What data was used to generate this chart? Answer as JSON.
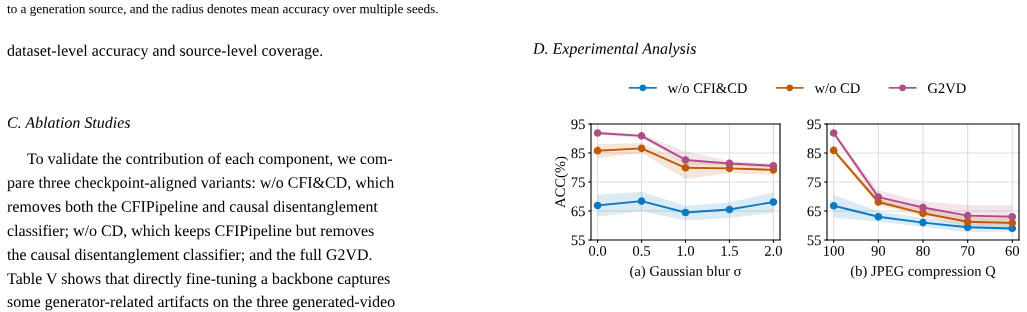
{
  "chart_data": [
    {
      "type": "line",
      "xlabel": "(a) Gaussian blur σ",
      "ylabel": "ACC(%)",
      "annotations": [
        "to a generation source, and the radius denotes mean accuracy over multiple seeds.",
        "dataset-level accuracy and source-level coverage.",
        "C. Ablation Studies",
        "To validate the contribution of each component, we com-",
        "pare three checkpoint-aligned variants: w/o CFI&CD, which",
        "removes both the CFIPipeline and causal disentanglement",
        "classifier; w/o CD, which keeps CFIPipeline but removes",
        "the causal disentanglement classifier; and the full G2VD.",
        "Table V shows that directly fine-tuning a backbone captures",
        "some generator-related artifacts on the three generated-video",
        "D. Experimental Analysis"
      ],
      "x": [
        0.0,
        0.5,
        1.0,
        1.5,
        2.0
      ],
      "xlim": [
        -0.075,
        2.075
      ],
      "xticks": [
        {
          "value": 0.0,
          "label": "0.0"
        },
        {
          "value": 0.5,
          "label": "0.5"
        },
        {
          "value": 1.0,
          "label": "1.0"
        },
        {
          "value": 1.5,
          "label": "1.5"
        },
        {
          "value": 2.0,
          "label": "2.0"
        }
      ],
      "ylim": [
        55,
        95
      ],
      "yticks": [
        55,
        65,
        75,
        85,
        95
      ],
      "grid": true,
      "legend": "top",
      "marker": "circle",
      "line_style": "solid",
      "series": [
        {
          "name": "w/o CFI&CD",
          "color": "#0a7ac2",
          "values": [
            66.9,
            68.4,
            64.5,
            65.5,
            68.1
          ],
          "lower": [
            63.0,
            65.0,
            61.7,
            62.6,
            64.5
          ],
          "upper": [
            70.6,
            71.6,
            66.8,
            67.9,
            71.4
          ]
        },
        {
          "name": "w/o CD",
          "color": "#c05a00",
          "values": [
            85.8,
            86.6,
            79.9,
            79.7,
            79.2
          ],
          "lower": [
            83.2,
            85.0,
            76.0,
            78.1,
            77.5
          ],
          "upper": [
            88.1,
            88.4,
            82.0,
            81.3,
            80.4
          ]
        },
        {
          "name": "G2VD",
          "color": "#b04d85",
          "values": [
            91.9,
            90.9,
            82.6,
            81.4,
            80.6
          ],
          "lower": [
            91.3,
            90.2,
            80.9,
            80.6,
            79.9
          ],
          "upper": [
            92.5,
            91.5,
            85.5,
            82.3,
            81.5
          ]
        }
      ]
    },
    {
      "type": "line",
      "xlabel": "(b) JPEG compression Q",
      "x": [
        100,
        90,
        80,
        70,
        60
      ],
      "xlim": [
        101.5,
        58.5
      ],
      "xticks": [
        100,
        90,
        80,
        70,
        60
      ],
      "ylim": [
        55,
        95
      ],
      "yticks": [
        55,
        65,
        75,
        85,
        95
      ],
      "grid": true,
      "marker": "circle",
      "line_style": "solid",
      "series": [
        {
          "color": "#0a7ac2",
          "values": [
            66.8,
            63.0,
            61.0,
            59.4,
            59.0
          ],
          "lower": [
            62.8,
            61.3,
            59.6,
            57.7,
            57.9
          ],
          "upper": [
            70.6,
            64.8,
            62.7,
            61.0,
            60.4
          ]
        },
        {
          "color": "#c05a00",
          "values": [
            85.9,
            68.1,
            64.2,
            61.3,
            60.9
          ],
          "lower": [
            85.0,
            67.1,
            63.1,
            59.6,
            59.6
          ],
          "upper": [
            86.7,
            69.2,
            65.6,
            63.1,
            62.5
          ]
        },
        {
          "color": "#b04d85",
          "values": [
            91.9,
            69.8,
            66.2,
            63.4,
            63.0
          ],
          "lower": [
            91.3,
            67.4,
            64.2,
            61.3,
            60.8
          ],
          "upper": [
            92.5,
            72.1,
            68.3,
            67.1,
            67.1
          ]
        }
      ]
    }
  ]
}
